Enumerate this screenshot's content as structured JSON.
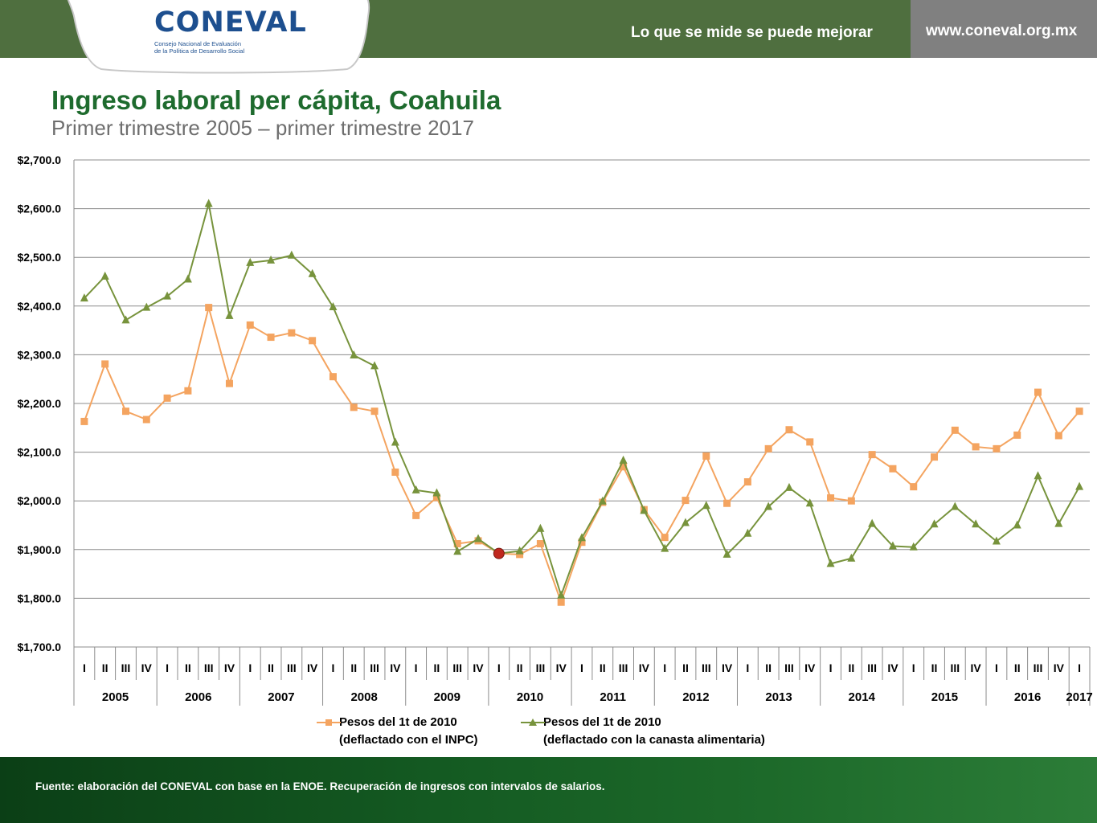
{
  "header": {
    "logo_text": "CONEVAL",
    "logo_subtitle_1": "Consejo Nacional de Evaluación",
    "logo_subtitle_2": "de la Política de Desarrollo Social",
    "tagline": "Lo que se mide se puede mejorar",
    "url": "www.coneval.org.mx"
  },
  "title": "Ingreso laboral per cápita, Coahuila",
  "subtitle": "Primer trimestre 2005 – primer trimestre 2017",
  "footer": {
    "source": "Fuente: elaboración del CONEVAL con base en la ENOE. Recuperación de ingresos con intervalos de salarios."
  },
  "legend": [
    {
      "line1": "Pesos del 1t de 2010",
      "line2": "(deflactado con el INPC)"
    },
    {
      "line1": "Pesos del 1t de 2010",
      "line2": "(deflactado con la canasta alimentaria)"
    }
  ],
  "colors": {
    "header": "#4f6f3f",
    "inpc": "#f4a460",
    "canasta": "#77933c",
    "title": "#1e6b2e",
    "highlight": "#c0281e"
  },
  "chart_data": {
    "type": "line",
    "ylim": [
      1700,
      2700
    ],
    "y_ticks": [
      "$1,700.0",
      "$1,800.0",
      "$1,900.0",
      "$2,000.0",
      "$2,100.0",
      "$2,200.0",
      "$2,300.0",
      "$2,400.0",
      "$2,500.0",
      "$2,600.0",
      "$2,700.0"
    ],
    "grid": true,
    "legend_position": "bottom",
    "quarters": [
      "I",
      "II",
      "III",
      "IV",
      "I",
      "II",
      "III",
      "IV",
      "I",
      "II",
      "III",
      "IV",
      "I",
      "II",
      "III",
      "IV",
      "I",
      "II",
      "III",
      "IV",
      "I",
      "II",
      "III",
      "IV",
      "I",
      "II",
      "III",
      "IV",
      "I",
      "II",
      "III",
      "IV",
      "I",
      "II",
      "III",
      "IV",
      "I",
      "II",
      "III",
      "IV",
      "I",
      "II",
      "III",
      "IV",
      "I",
      "II",
      "III",
      "IV",
      "I"
    ],
    "years": [
      "2005",
      "2006",
      "2007",
      "2008",
      "2009",
      "2010",
      "2011",
      "2012",
      "2013",
      "2014",
      "2015",
      "2016",
      "2017"
    ],
    "highlight_index": 20,
    "series": [
      {
        "name": "Pesos del 1t de 2010 (deflactado con el INPC)",
        "marker": "square",
        "values": [
          2163,
          2281,
          2184,
          2167,
          2211,
          2226,
          2397,
          2241,
          2361,
          2336,
          2345,
          2329,
          2255,
          2192,
          2184,
          2059,
          1970,
          2007,
          1912,
          1918,
          1892,
          1890,
          1912,
          1792,
          1915,
          1997,
          2070,
          1982,
          1925,
          2001,
          2092,
          1995,
          2039,
          2107,
          2146,
          2121,
          2006,
          2000,
          2095,
          2066,
          2029,
          2090,
          2145,
          2111,
          2107,
          2135,
          2223,
          2134,
          2184
        ]
      },
      {
        "name": "Pesos del 1t de 2010 (deflactado con la canasta alimentaria)",
        "marker": "triangle",
        "values": [
          2416,
          2461,
          2371,
          2397,
          2420,
          2455,
          2610,
          2380,
          2489,
          2494,
          2504,
          2466,
          2398,
          2299,
          2277,
          2120,
          2022,
          2016,
          1896,
          1922,
          1892,
          1897,
          1943,
          1806,
          1924,
          1999,
          2083,
          1980,
          1902,
          1955,
          1990,
          1890,
          1933,
          1988,
          2027,
          1995,
          1871,
          1882,
          1953,
          1907,
          1905,
          1952,
          1988,
          1952,
          1917,
          1950,
          2051,
          1953,
          2029
        ]
      }
    ]
  }
}
